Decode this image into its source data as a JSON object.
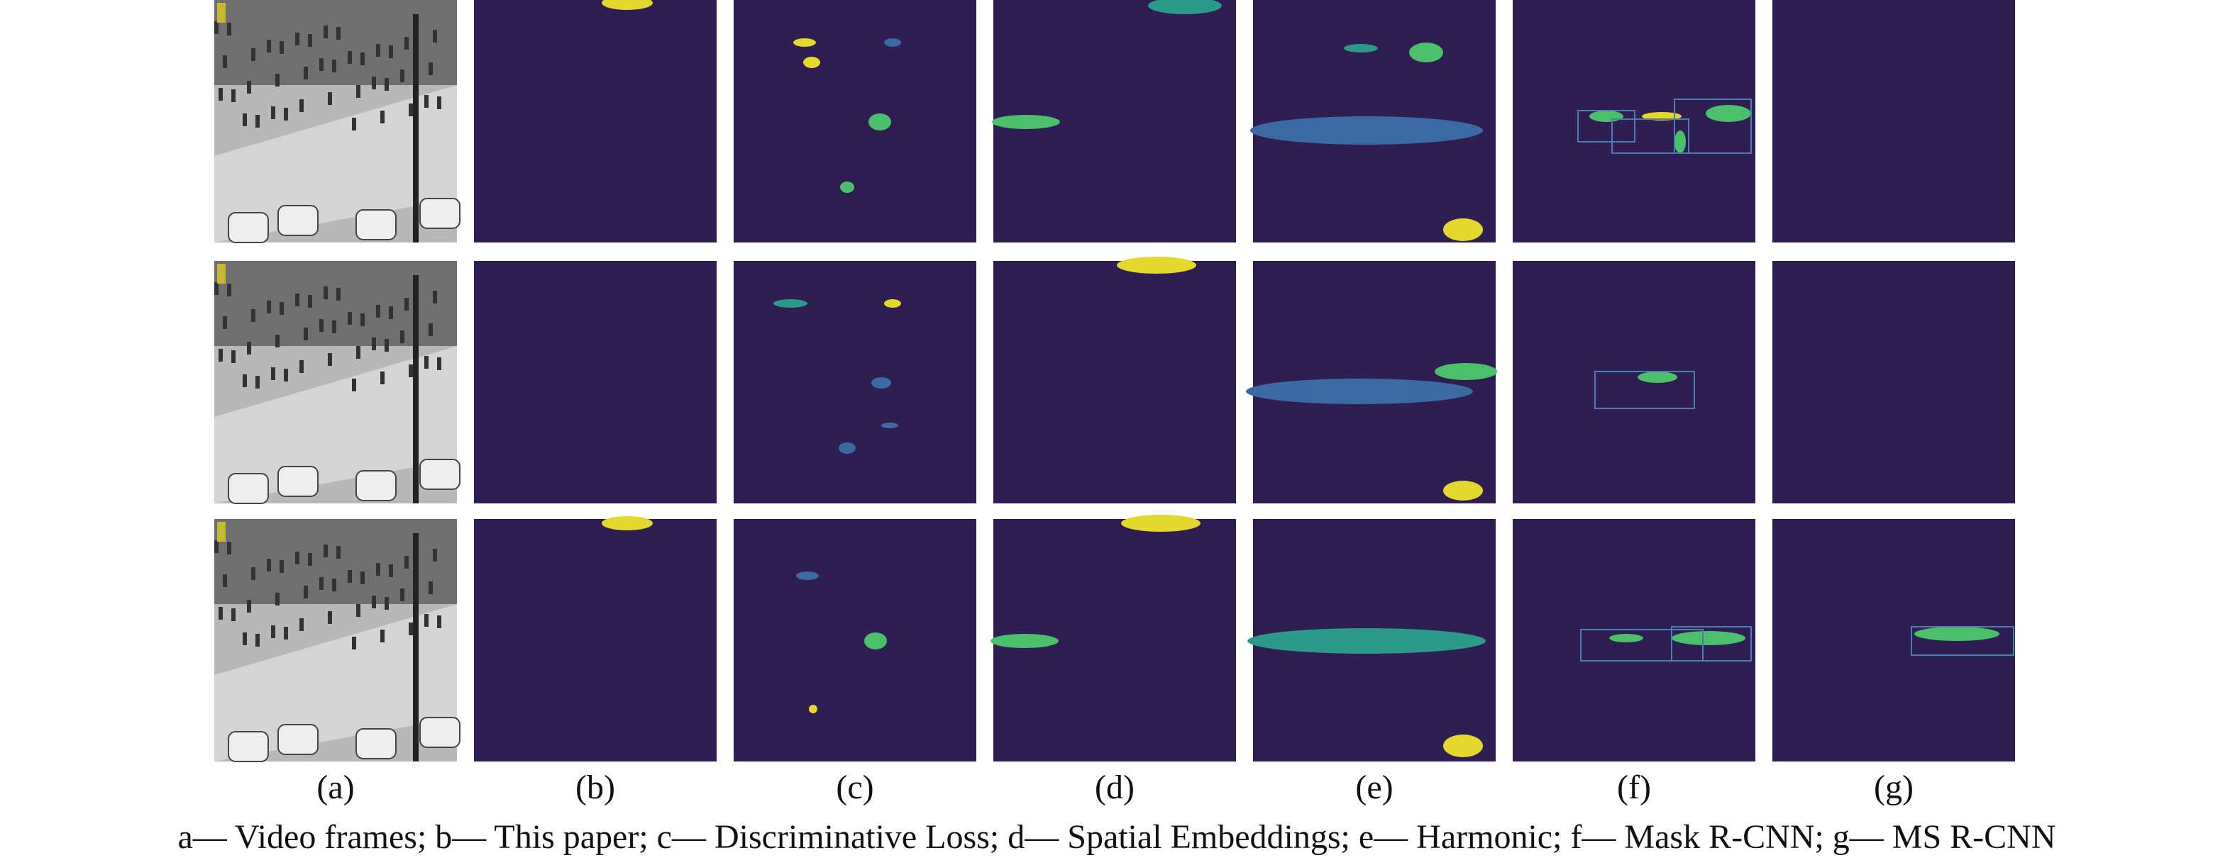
{
  "figure": {
    "panel_labels": [
      "(a)",
      "(b)",
      "(c)",
      "(d)",
      "(e)",
      "(f)",
      "(g)"
    ],
    "caption": "a— Video frames; b— This paper; c— Discriminative Loss; d— Spatial Embeddings; e— Harmonic; f— Mask R-CNN; g— MS R-CNN"
  }
}
